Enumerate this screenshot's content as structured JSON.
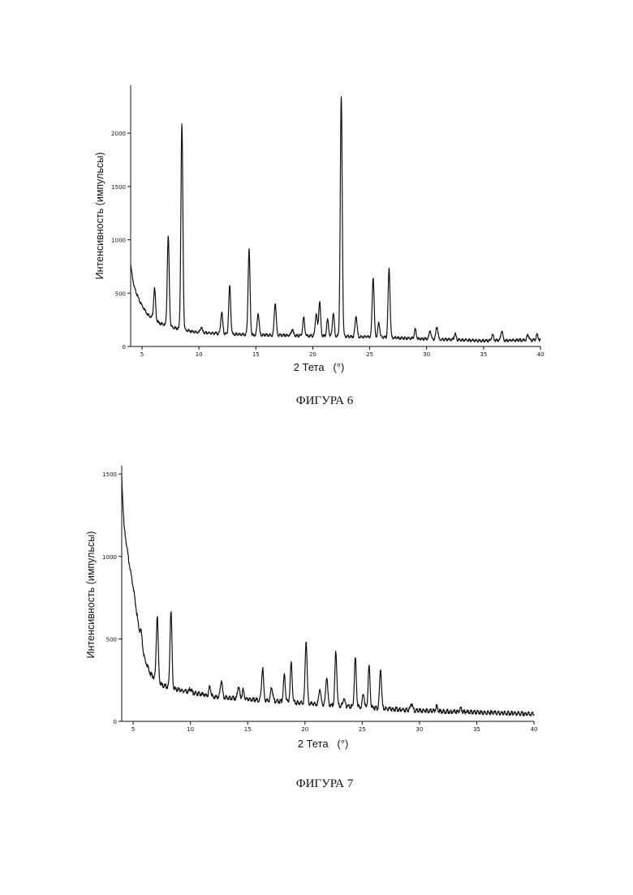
{
  "chart_data": [
    {
      "type": "line",
      "caption": "ФИГУРА 6",
      "xlabel": "2 Тета   (°)",
      "ylabel": "Интенсивность (импульсы)",
      "xlim": [
        4,
        40
      ],
      "ylim": [
        0,
        2450
      ],
      "x_ticks": [
        5,
        10,
        15,
        20,
        25,
        30,
        35,
        40
      ],
      "y_ticks": [
        0,
        500,
        1000,
        1500,
        2000
      ],
      "grid": false,
      "baseline": [
        [
          4.0,
          760
        ],
        [
          4.3,
          560
        ],
        [
          4.8,
          420
        ],
        [
          5.5,
          300
        ],
        [
          6.5,
          220
        ],
        [
          8,
          170
        ],
        [
          10,
          130
        ],
        [
          14,
          110
        ],
        [
          20,
          100
        ],
        [
          25,
          90
        ],
        [
          30,
          70
        ],
        [
          35,
          55
        ],
        [
          40,
          60
        ]
      ],
      "peaks": [
        {
          "x": 6.1,
          "y": 540
        },
        {
          "x": 7.3,
          "y": 1030
        },
        {
          "x": 8.5,
          "y": 2080
        },
        {
          "x": 10.2,
          "y": 180
        },
        {
          "x": 12.0,
          "y": 320
        },
        {
          "x": 12.7,
          "y": 570
        },
        {
          "x": 14.4,
          "y": 910
        },
        {
          "x": 15.2,
          "y": 310
        },
        {
          "x": 16.7,
          "y": 410
        },
        {
          "x": 18.2,
          "y": 160
        },
        {
          "x": 19.2,
          "y": 270
        },
        {
          "x": 20.3,
          "y": 310
        },
        {
          "x": 20.6,
          "y": 420
        },
        {
          "x": 21.3,
          "y": 250
        },
        {
          "x": 21.8,
          "y": 310
        },
        {
          "x": 22.5,
          "y": 2340
        },
        {
          "x": 23.8,
          "y": 290
        },
        {
          "x": 25.3,
          "y": 650
        },
        {
          "x": 25.8,
          "y": 220
        },
        {
          "x": 26.7,
          "y": 730
        },
        {
          "x": 29.0,
          "y": 160
        },
        {
          "x": 30.3,
          "y": 150
        },
        {
          "x": 30.9,
          "y": 190
        },
        {
          "x": 32.5,
          "y": 120
        },
        {
          "x": 35.8,
          "y": 110
        },
        {
          "x": 36.6,
          "y": 150
        },
        {
          "x": 38.9,
          "y": 110
        },
        {
          "x": 39.7,
          "y": 110
        }
      ]
    },
    {
      "type": "line",
      "caption": "ФИГУРА 7",
      "xlabel": "2 Тета   (°)",
      "ylabel": "Интенсивность (импульсы)",
      "xlim": [
        4,
        40
      ],
      "ylim": [
        0,
        1550
      ],
      "x_ticks": [
        5,
        10,
        15,
        20,
        25,
        30,
        35,
        40
      ],
      "y_ticks": [
        0,
        500,
        1000,
        1500
      ],
      "grid": false,
      "baseline": [
        [
          4.0,
          1480
        ],
        [
          4.2,
          1180
        ],
        [
          4.6,
          980
        ],
        [
          5.0,
          820
        ],
        [
          5.5,
          560
        ],
        [
          6.0,
          380
        ],
        [
          6.5,
          290
        ],
        [
          7.5,
          220
        ],
        [
          9,
          190
        ],
        [
          12,
          150
        ],
        [
          16,
          130
        ],
        [
          20,
          110
        ],
        [
          25,
          85
        ],
        [
          30,
          65
        ],
        [
          35,
          55
        ],
        [
          40,
          45
        ]
      ],
      "peaks": [
        {
          "x": 5.7,
          "y": 540
        },
        {
          "x": 7.1,
          "y": 640
        },
        {
          "x": 8.3,
          "y": 670
        },
        {
          "x": 10.0,
          "y": 200
        },
        {
          "x": 11.7,
          "y": 210
        },
        {
          "x": 12.7,
          "y": 250
        },
        {
          "x": 14.2,
          "y": 210
        },
        {
          "x": 14.6,
          "y": 190
        },
        {
          "x": 16.3,
          "y": 320
        },
        {
          "x": 17.1,
          "y": 210
        },
        {
          "x": 18.2,
          "y": 280
        },
        {
          "x": 18.8,
          "y": 350
        },
        {
          "x": 20.1,
          "y": 490
        },
        {
          "x": 21.3,
          "y": 200
        },
        {
          "x": 21.9,
          "y": 270
        },
        {
          "x": 22.7,
          "y": 420
        },
        {
          "x": 23.4,
          "y": 140
        },
        {
          "x": 24.4,
          "y": 380
        },
        {
          "x": 25.1,
          "y": 170
        },
        {
          "x": 25.6,
          "y": 330
        },
        {
          "x": 26.6,
          "y": 320
        },
        {
          "x": 29.3,
          "y": 110
        },
        {
          "x": 31.5,
          "y": 90
        },
        {
          "x": 33.6,
          "y": 80
        }
      ]
    }
  ]
}
